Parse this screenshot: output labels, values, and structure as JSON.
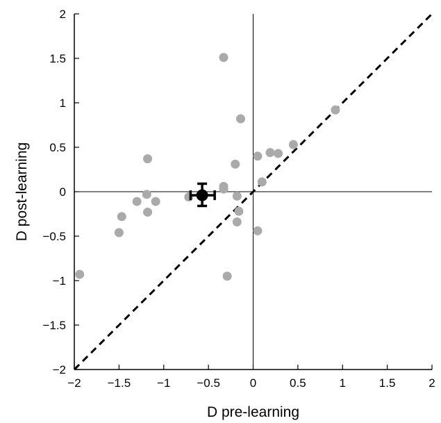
{
  "chart_data": {
    "type": "scatter",
    "title": "",
    "xlabel": "D pre-learning",
    "ylabel": "D post-learning",
    "xlim": [
      -2,
      2
    ],
    "ylim": [
      -2,
      2
    ],
    "xticks": [
      -2,
      -1.5,
      -1,
      -0.5,
      0,
      0.5,
      1,
      1.5,
      2
    ],
    "yticks": [
      -2,
      -1.5,
      -1,
      -0.5,
      0,
      0.5,
      1,
      1.5,
      2
    ],
    "xtick_labels": [
      "−2",
      "−1.5",
      "−1",
      "−0.5",
      "0",
      "0.5",
      "1",
      "1.5",
      "2"
    ],
    "ytick_labels": [
      "−2",
      "−1.5",
      "−1",
      "−0.5",
      "0",
      "0.5",
      "1",
      "1.5",
      "2"
    ],
    "grid": false,
    "reference_lines": {
      "x_zero": true,
      "y_zero": true,
      "identity_dashed": true
    },
    "series": [
      {
        "color": "#aaaaaa",
        "points": [
          [
            -1.94,
            -0.93
          ],
          [
            -1.5,
            -0.46
          ],
          [
            -1.47,
            -0.28
          ],
          [
            -1.3,
            -0.11
          ],
          [
            -1.18,
            0.37
          ],
          [
            -1.19,
            -0.03
          ],
          [
            -1.18,
            -0.23
          ],
          [
            -1.09,
            -0.11
          ],
          [
            -0.72,
            -0.06
          ],
          [
            -0.33,
            1.51
          ],
          [
            -0.33,
            0.06
          ],
          [
            -0.33,
            0.03
          ],
          [
            -0.29,
            -0.95
          ],
          [
            -0.2,
            0.31
          ],
          [
            -0.18,
            -0.05
          ],
          [
            -0.18,
            -0.34
          ],
          [
            -0.16,
            -0.22
          ],
          [
            -0.14,
            0.82
          ],
          [
            0.05,
            0.4
          ],
          [
            0.05,
            -0.44
          ],
          [
            0.1,
            0.11
          ],
          [
            0.19,
            0.44
          ],
          [
            0.28,
            0.43
          ],
          [
            0.45,
            0.53
          ],
          [
            0.92,
            0.92
          ]
        ]
      },
      {
        "color": "#000000",
        "points": [
          [
            -0.57,
            -0.04
          ]
        ],
        "x_error": [
          [
            -0.7,
            -0.43
          ]
        ],
        "y_error": [
          [
            -0.16,
            0.09
          ]
        ]
      }
    ]
  }
}
